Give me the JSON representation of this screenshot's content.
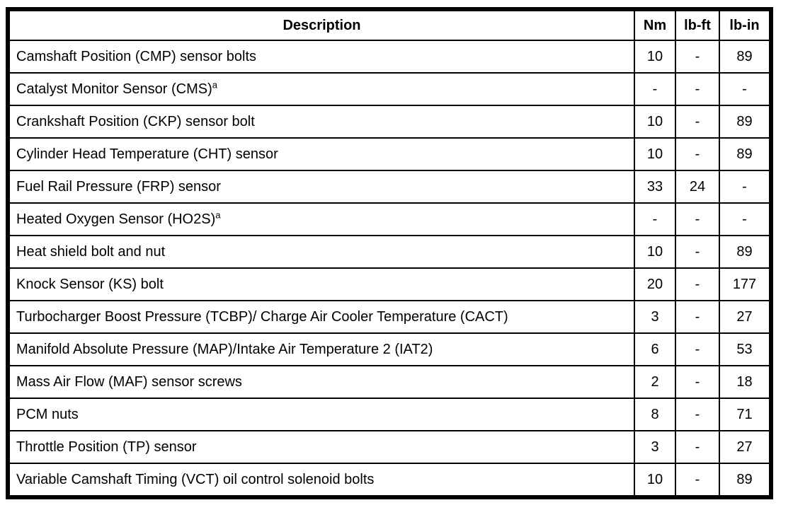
{
  "colors": {
    "border": "#000000",
    "text": "#000000",
    "background": "#ffffff"
  },
  "table": {
    "columns": {
      "description": "Description",
      "nm": "Nm",
      "lb_ft": "lb-ft",
      "lb_in": "lb-in"
    },
    "rows": [
      {
        "description": "Camshaft Position (CMP) sensor bolts",
        "sup": "",
        "nm": "10",
        "lb_ft": "-",
        "lb_in": "89"
      },
      {
        "description": "Catalyst Monitor Sensor (CMS)",
        "sup": "a",
        "nm": "-",
        "lb_ft": "-",
        "lb_in": "-"
      },
      {
        "description": "Crankshaft Position (CKP) sensor bolt",
        "sup": "",
        "nm": "10",
        "lb_ft": "-",
        "lb_in": "89"
      },
      {
        "description": "Cylinder Head Temperature (CHT) sensor",
        "sup": "",
        "nm": "10",
        "lb_ft": "-",
        "lb_in": "89"
      },
      {
        "description": "Fuel Rail Pressure (FRP) sensor",
        "sup": "",
        "nm": "33",
        "lb_ft": "24",
        "lb_in": "-"
      },
      {
        "description": "Heated Oxygen Sensor (HO2S)",
        "sup": "a",
        "nm": "-",
        "lb_ft": "-",
        "lb_in": "-"
      },
      {
        "description": "Heat shield bolt and nut",
        "sup": "",
        "nm": "10",
        "lb_ft": "-",
        "lb_in": "89"
      },
      {
        "description": "Knock Sensor (KS) bolt",
        "sup": "",
        "nm": "20",
        "lb_ft": "-",
        "lb_in": "177"
      },
      {
        "description": "Turbocharger Boost Pressure (TCBP)/ Charge Air Cooler Temperature (CACT)",
        "sup": "",
        "nm": "3",
        "lb_ft": "-",
        "lb_in": "27"
      },
      {
        "description": "Manifold Absolute Pressure (MAP)/Intake Air Temperature 2 (IAT2)",
        "sup": "",
        "nm": "6",
        "lb_ft": "-",
        "lb_in": "53"
      },
      {
        "description": "Mass Air Flow (MAF) sensor screws",
        "sup": "",
        "nm": "2",
        "lb_ft": "-",
        "lb_in": "18"
      },
      {
        "description": "PCM nuts",
        "sup": "",
        "nm": "8",
        "lb_ft": "-",
        "lb_in": "71"
      },
      {
        "description": "Throttle Position (TP) sensor",
        "sup": "",
        "nm": "3",
        "lb_ft": "-",
        "lb_in": "27"
      },
      {
        "description": "Variable Camshaft Timing (VCT) oil control solenoid bolts",
        "sup": "",
        "nm": "10",
        "lb_ft": "-",
        "lb_in": "89"
      }
    ]
  }
}
